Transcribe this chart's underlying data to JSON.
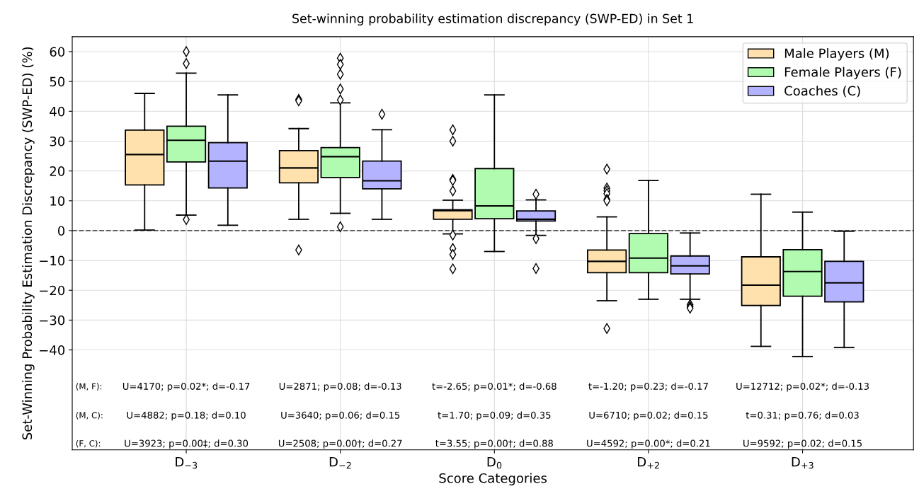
{
  "chart_data": {
    "type": "box",
    "title": "Set-winning probability estimation discrepancy (SWP-ED) in Set 1",
    "xlabel": "Score Categories",
    "ylabel": "Set-Winning Probability Estimation Discrepancy (SWP-ED) (%)",
    "categories": [
      "D$_{−3}$",
      "D$_{−2}$",
      "D$_{0}$",
      "D$_{+2}$",
      "D$_{+3}$"
    ],
    "series": [
      {
        "name": "Male Players (M)",
        "color": "#ffe1ae",
        "boxes": [
          {
            "low": 0.2,
            "q1": 15.3,
            "median": 25.5,
            "q3": 33.7,
            "high": 46
          },
          {
            "low": 3.8,
            "q1": 16,
            "median": 21,
            "q3": 26.8,
            "high": 34.2,
            "outliers": [
              44,
              43.5,
              -6.5
            ]
          },
          {
            "low": -1.1,
            "q1": 3.8,
            "median": 6.7,
            "q3": 7,
            "high": 10.2,
            "outliers": [
              33.8,
              30,
              17.2,
              16.8,
              13.3,
              -1.5,
              -6,
              -8,
              -12.8
            ]
          },
          {
            "low": -23.5,
            "q1": -14.1,
            "median": -10.3,
            "q3": -6.5,
            "high": 4.6,
            "outliers": [
              20.6,
              14.3,
              13.4,
              12.4,
              10.5,
              10,
              -32.8
            ]
          },
          {
            "low": -38.8,
            "q1": -25.1,
            "median": -18.3,
            "q3": -8.8,
            "high": 12.2
          }
        ]
      },
      {
        "name": "Female Players (F)",
        "color": "#b0fbb0",
        "boxes": [
          {
            "low": 5.2,
            "q1": 23,
            "median": 30.3,
            "q3": 35,
            "high": 52.8,
            "outliers": [
              60,
              56,
              3.7
            ]
          },
          {
            "low": 5.8,
            "q1": 17.8,
            "median": 24.8,
            "q3": 27.8,
            "high": 42.8,
            "outliers": [
              57.8,
              55.7,
              52.4,
              47.5,
              43.8,
              1.3
            ]
          },
          {
            "low": -7,
            "q1": 4,
            "median": 8.3,
            "q3": 20.8,
            "high": 45.5
          },
          {
            "low": -23,
            "q1": -14.1,
            "median": -9.2,
            "q3": -1,
            "high": 16.8
          },
          {
            "low": -42.2,
            "q1": -22,
            "median": -13.7,
            "q3": -6.4,
            "high": 6.2
          }
        ]
      },
      {
        "name": "Coaches (C)",
        "color": "#b3b3ff",
        "boxes": [
          {
            "low": 1.8,
            "q1": 14.3,
            "median": 23.3,
            "q3": 29.5,
            "high": 45.5
          },
          {
            "low": 3.8,
            "q1": 14,
            "median": 16.7,
            "q3": 23.3,
            "high": 33.8,
            "outliers": [
              39
            ]
          },
          {
            "low": -1.6,
            "q1": 3.2,
            "median": 3.8,
            "q3": 6.6,
            "high": 10.3,
            "outliers": [
              12.2,
              -2.7,
              -12.7
            ]
          },
          {
            "low": -23,
            "q1": -14.5,
            "median": -11.8,
            "q3": -8.5,
            "high": -0.8,
            "outliers": [
              -24.8,
              -25.5,
              -26
            ]
          },
          {
            "low": -39.2,
            "q1": -23.9,
            "median": -17.5,
            "q3": -10.3,
            "high": -0.2
          }
        ]
      }
    ],
    "ylim": [
      -73.5,
      65
    ],
    "yticks": [
      -40,
      -30,
      -20,
      -10,
      0,
      10,
      20,
      30,
      40,
      50,
      60
    ],
    "ref_lines": [
      {
        "axis": "y",
        "value": 0,
        "color": "#555555",
        "line_style": "dashed"
      }
    ],
    "grid": true,
    "legend": "top right",
    "marker": "diamond",
    "annotations": [
      "(M, F):",
      "U=4170; p=0.02*; d=-0.17",
      "U=2871; p=0.08; d=-0.13",
      "t=-2.65; p=0.01*; d=-0.68",
      "t=-1.20; p=0.23; d=-0.17",
      "U=12712; p=0.02*; d=-0.13",
      "(M, C):",
      "U=4882; p=0.18; d=0.10",
      "U=3640; p=0.06; d=0.15",
      "t=1.70; p=0.09; d=0.35",
      "U=6710; p=0.02; d=0.15",
      "t=0.31; p=0.76; d=0.03",
      "(F, C):",
      "U=3923; p=0.00‡; d=0.30",
      "U=2508; p=0.00†; d=0.27",
      "t=3.55; p=0.00†; d=0.88",
      "U=4592; p=0.00*; d=0.21",
      "U=9592; p=0.02; d=0.15"
    ]
  }
}
